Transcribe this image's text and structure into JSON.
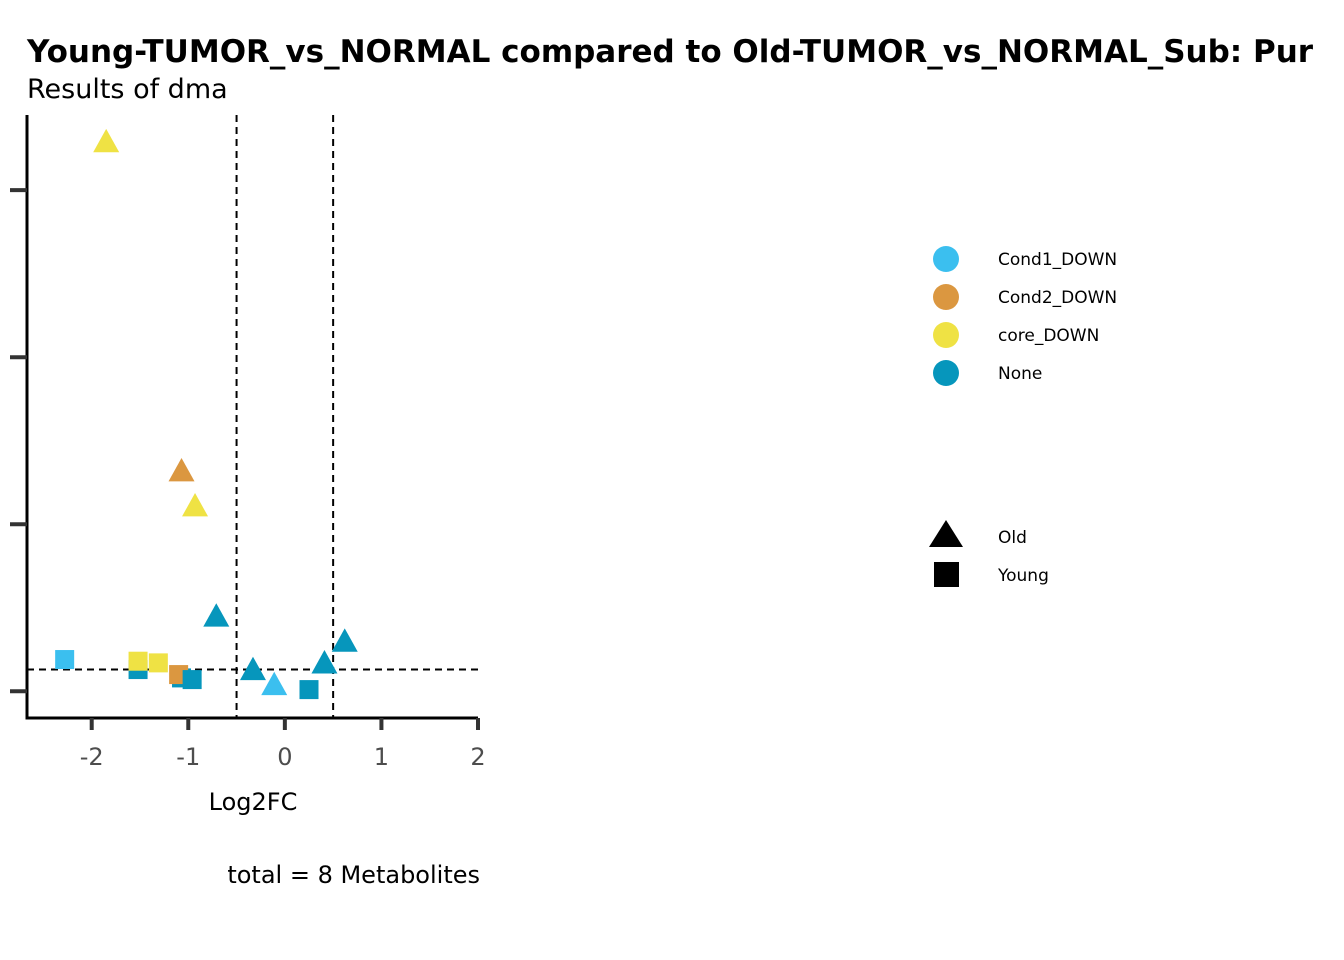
{
  "chart_data": {
    "type": "scatter",
    "title": "Young-TUMOR_vs_NORMAL compared to Old-TUMOR_vs_NORMAL_Sub: Pur",
    "subtitle": "Results of dma",
    "xlabel": "Log2FC",
    "ylabel": "",
    "caption": "total = 8 Metabolites",
    "xlim": [
      -2.67,
      2.0
    ],
    "ylim": [
      -0.16,
      3.45
    ],
    "x_ticks": [
      -2,
      -1,
      0,
      1,
      2
    ],
    "x_tick_labels": [
      "-2",
      "-1",
      "0",
      "1",
      "2"
    ],
    "y_ticks": [
      0,
      1,
      2,
      3
    ],
    "y_tick_labels": [
      "",
      "",
      "",
      ""
    ],
    "vlines": [
      -0.5,
      0.5
    ],
    "hlines": [
      0.13
    ],
    "grid": false,
    "legend_position": "right",
    "colors": {
      "Cond1_DOWN": "#3BBFEF",
      "Cond2_DOWN": "#DB9740",
      "core_DOWN": "#EFE244",
      "None": "#0696BC"
    },
    "color_legend": [
      "Cond1_DOWN",
      "Cond2_DOWN",
      "core_DOWN",
      "None"
    ],
    "shape_legend": [
      {
        "label": "Old",
        "shape": "triangle"
      },
      {
        "label": "Young",
        "shape": "square"
      }
    ],
    "points": [
      {
        "x": -1.85,
        "y": 3.28,
        "group": "core_DOWN",
        "shape": "triangle"
      },
      {
        "x": -1.07,
        "y": 1.31,
        "group": "Cond2_DOWN",
        "shape": "triangle"
      },
      {
        "x": -0.93,
        "y": 1.1,
        "group": "core_DOWN",
        "shape": "triangle"
      },
      {
        "x": -0.71,
        "y": 0.44,
        "group": "None",
        "shape": "triangle"
      },
      {
        "x": -0.33,
        "y": 0.12,
        "group": "None",
        "shape": "triangle"
      },
      {
        "x": -0.11,
        "y": 0.03,
        "group": "Cond1_DOWN",
        "shape": "triangle"
      },
      {
        "x": 0.41,
        "y": 0.16,
        "group": "None",
        "shape": "triangle"
      },
      {
        "x": 0.62,
        "y": 0.29,
        "group": "None",
        "shape": "triangle"
      },
      {
        "x": -2.28,
        "y": 0.19,
        "group": "Cond1_DOWN",
        "shape": "square"
      },
      {
        "x": -1.52,
        "y": 0.13,
        "group": "None",
        "shape": "square"
      },
      {
        "x": -1.52,
        "y": 0.18,
        "group": "core_DOWN",
        "shape": "square"
      },
      {
        "x": -1.31,
        "y": 0.17,
        "group": "core_DOWN",
        "shape": "square"
      },
      {
        "x": -1.07,
        "y": 0.08,
        "group": "None",
        "shape": "square"
      },
      {
        "x": -1.1,
        "y": 0.1,
        "group": "Cond2_DOWN",
        "shape": "square"
      },
      {
        "x": -0.96,
        "y": 0.07,
        "group": "None",
        "shape": "square"
      },
      {
        "x": 0.25,
        "y": 0.01,
        "group": "None",
        "shape": "square"
      }
    ]
  }
}
